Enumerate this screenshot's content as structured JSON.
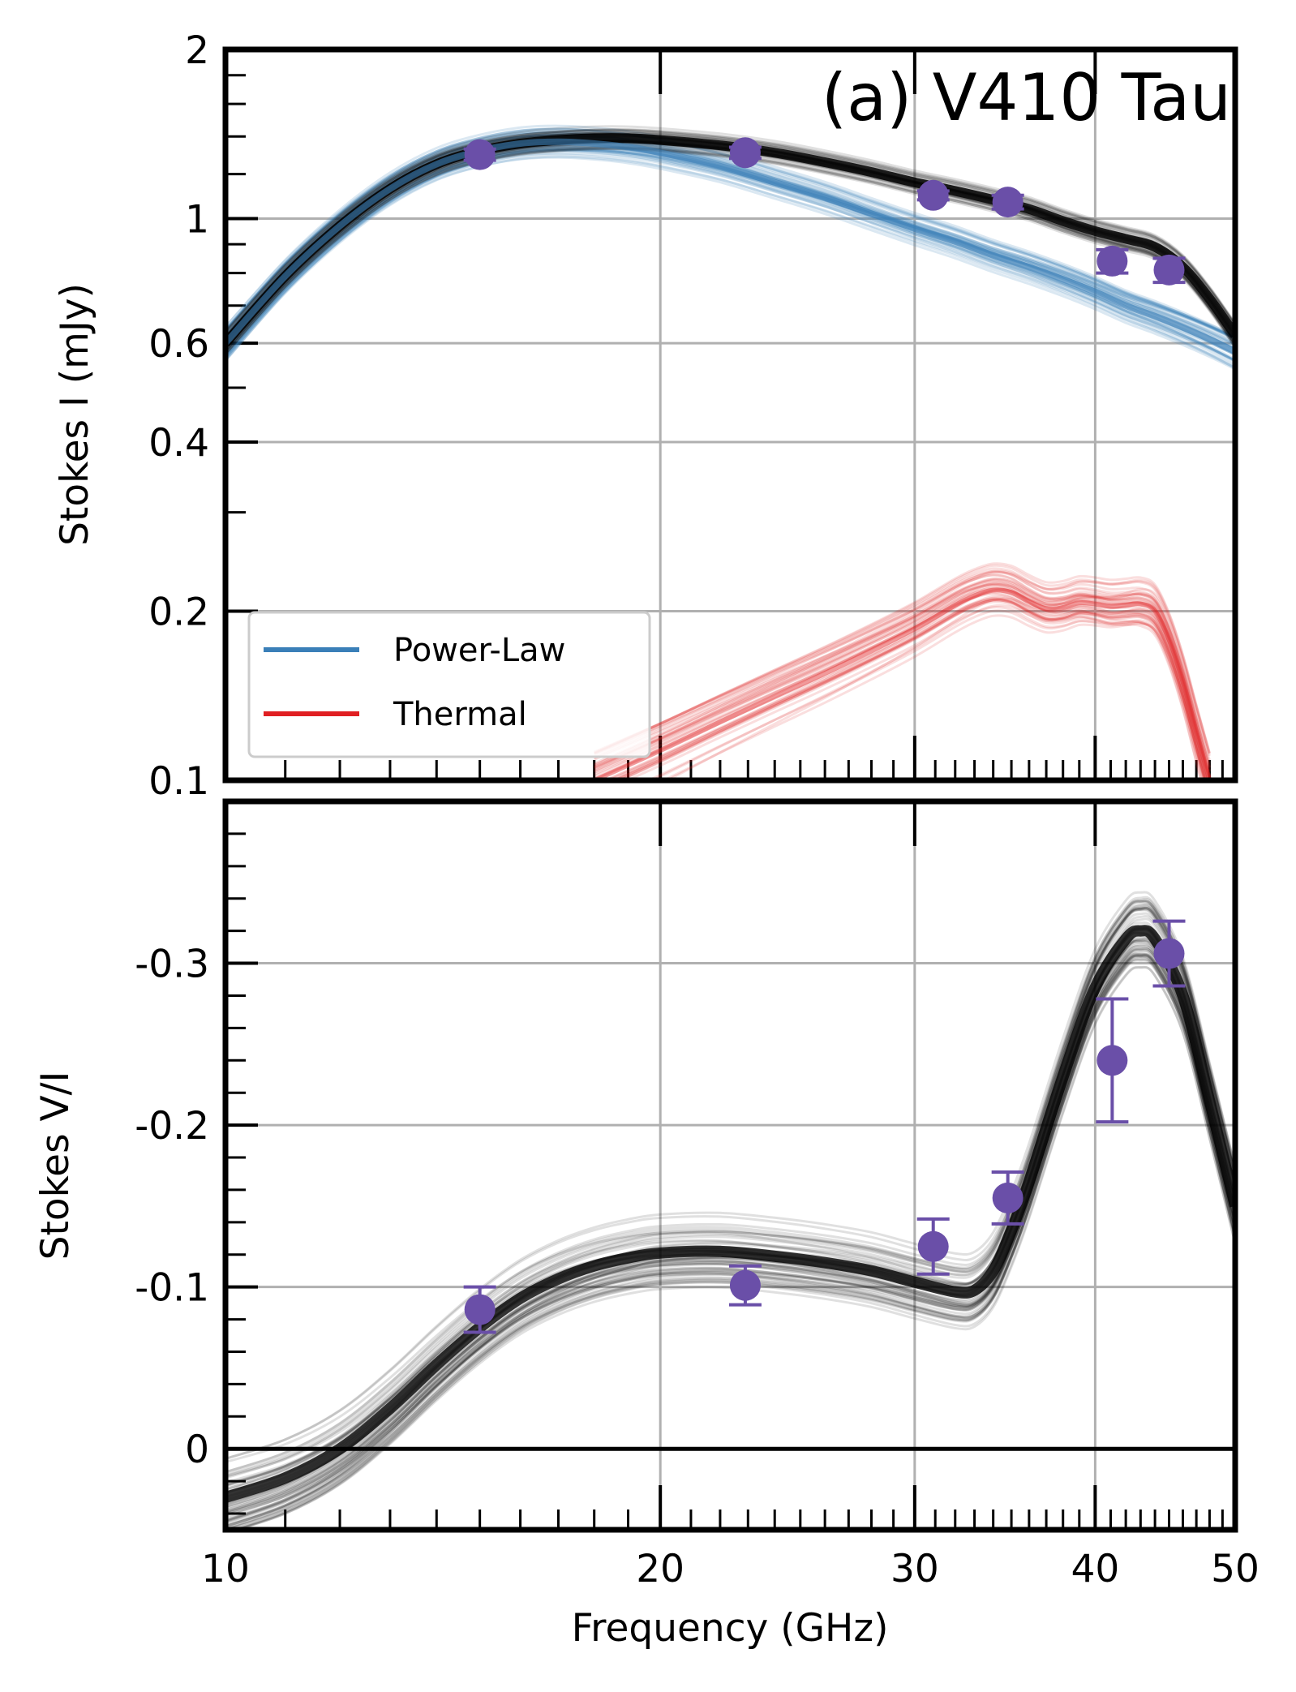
{
  "figure": {
    "xlabel": "Frequency (GHz)",
    "x_ticks": [
      "10",
      "20",
      "30",
      "40",
      "50"
    ]
  },
  "colors": {
    "data_points": "#6a4fa8",
    "power_law": "#3a7fb8",
    "thermal": "#e01f22",
    "total_model": "#000000",
    "grid": "#b0b0b0"
  },
  "chart_data": [
    {
      "type": "line",
      "title": "(a) V410 Tau",
      "xlabel": "Frequency (GHz)",
      "ylabel": "Stokes I (mJy)",
      "x_scale": "log",
      "y_scale": "log",
      "xlim": [
        10,
        50
      ],
      "ylim": [
        0.1,
        2
      ],
      "x_ticks": [
        "10",
        "20",
        "30",
        "40",
        "50"
      ],
      "y_ticks": [
        "0.1",
        "0.2",
        "0.4",
        "0.6",
        "1",
        "2"
      ],
      "grid": true,
      "legend": {
        "position": "lower-left",
        "entries": [
          "Power-Law",
          "Thermal"
        ]
      },
      "observations": {
        "x": [
          15.0,
          22.9,
          30.9,
          34.8,
          41.1,
          45.0
        ],
        "y": [
          1.3,
          1.31,
          1.1,
          1.07,
          0.84,
          0.81
        ],
        "yerr": [
          0.03,
          0.03,
          0.02,
          0.03,
          0.04,
          0.04
        ]
      },
      "series": [
        {
          "name": "Power-Law",
          "x": [
            10,
            11,
            12,
            13,
            14,
            15,
            16,
            17,
            18,
            19,
            20,
            22,
            24,
            26,
            28,
            30,
            32,
            34,
            36,
            38,
            40,
            42,
            44,
            46,
            48,
            50
          ],
          "y": [
            0.6,
            0.79,
            0.97,
            1.13,
            1.25,
            1.32,
            1.36,
            1.37,
            1.36,
            1.34,
            1.31,
            1.24,
            1.16,
            1.09,
            1.02,
            0.96,
            0.91,
            0.86,
            0.82,
            0.78,
            0.74,
            0.7,
            0.67,
            0.64,
            0.61,
            0.58
          ]
        },
        {
          "name": "Thermal",
          "x": [
            18,
            20,
            22,
            24,
            26,
            28,
            30,
            32,
            33,
            34,
            35,
            36,
            37,
            38,
            39,
            40,
            41,
            42,
            43,
            44,
            45,
            46,
            47,
            48
          ],
          "y": [
            0.1,
            0.113,
            0.127,
            0.141,
            0.155,
            0.17,
            0.186,
            0.205,
            0.213,
            0.218,
            0.216,
            0.208,
            0.202,
            0.203,
            0.207,
            0.206,
            0.204,
            0.205,
            0.206,
            0.2,
            0.178,
            0.15,
            0.122,
            0.1
          ]
        },
        {
          "name": "",
          "x": [
            10,
            11,
            12,
            13,
            14,
            15,
            16,
            17,
            18,
            19,
            20,
            22,
            24,
            26,
            28,
            30,
            32,
            34,
            36,
            38,
            40,
            42,
            44,
            46,
            48,
            50
          ],
          "y": [
            0.6,
            0.79,
            0.97,
            1.13,
            1.25,
            1.32,
            1.36,
            1.38,
            1.39,
            1.39,
            1.38,
            1.35,
            1.31,
            1.26,
            1.21,
            1.16,
            1.12,
            1.08,
            1.04,
            0.99,
            0.95,
            0.92,
            0.89,
            0.82,
            0.72,
            0.62
          ]
        }
      ]
    },
    {
      "type": "line",
      "title": "",
      "xlabel": "Frequency (GHz)",
      "ylabel": "Stokes V/I",
      "x_scale": "log",
      "y_scale": "linear",
      "y_inverted": true,
      "xlim": [
        10,
        50
      ],
      "ylim": [
        0.05,
        -0.4
      ],
      "x_ticks": [
        "10",
        "20",
        "30",
        "40",
        "50"
      ],
      "y_ticks": [
        "0",
        "-0.1",
        "-0.2",
        "-0.3"
      ],
      "y_tick_values": [
        0,
        -0.1,
        -0.2,
        -0.3
      ],
      "grid": true,
      "observations": {
        "x": [
          15.0,
          22.9,
          30.9,
          34.8,
          41.1,
          45.0
        ],
        "y": [
          -0.086,
          -0.101,
          -0.125,
          -0.155,
          -0.24,
          -0.306
        ],
        "yerr": [
          0.014,
          0.012,
          0.017,
          0.016,
          0.038,
          0.02
        ]
      },
      "series": [
        {
          "name": "",
          "x": [
            10,
            11,
            12,
            13,
            14,
            15,
            16,
            17,
            18,
            19,
            20,
            22,
            24,
            26,
            28,
            30,
            32,
            33,
            34,
            35,
            36,
            38,
            40,
            42,
            43,
            44,
            46,
            48,
            50
          ],
          "y": [
            0.03,
            0.018,
            0.0,
            -0.025,
            -0.052,
            -0.075,
            -0.093,
            -0.105,
            -0.113,
            -0.118,
            -0.121,
            -0.122,
            -0.119,
            -0.115,
            -0.11,
            -0.103,
            -0.097,
            -0.098,
            -0.11,
            -0.135,
            -0.165,
            -0.23,
            -0.285,
            -0.315,
            -0.32,
            -0.315,
            -0.28,
            -0.215,
            -0.15
          ]
        }
      ],
      "reference_line": {
        "y": 0
      }
    }
  ]
}
